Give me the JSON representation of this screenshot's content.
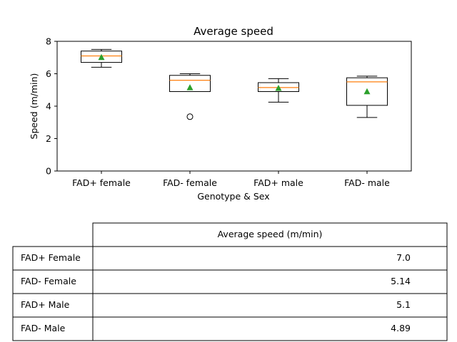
{
  "chart_data": {
    "type": "box",
    "title": "Average speed",
    "xlabel": "Genotype & Sex",
    "ylabel": "Speed (m/min)",
    "ylim": [
      0,
      8
    ],
    "yticks": [
      "0",
      "2",
      "4",
      "6",
      "8"
    ],
    "categories": [
      "FAD+ female",
      "FAD- female",
      "FAD+ male",
      "FAD- male"
    ],
    "boxes": [
      {
        "whisker_low": 6.4,
        "q1": 6.7,
        "median": 7.1,
        "q3": 7.4,
        "whisker_high": 7.5,
        "mean": 7.0,
        "outliers": []
      },
      {
        "whisker_low": 4.9,
        "q1": 4.9,
        "median": 5.6,
        "q3": 5.9,
        "whisker_high": 6.0,
        "mean": 5.14,
        "outliers": [
          3.35
        ]
      },
      {
        "whisker_low": 4.25,
        "q1": 4.9,
        "median": 5.15,
        "q3": 5.45,
        "whisker_high": 5.7,
        "mean": 5.1,
        "outliers": []
      },
      {
        "whisker_low": 3.3,
        "q1": 4.05,
        "median": 5.5,
        "q3": 5.75,
        "whisker_high": 5.85,
        "mean": 4.89,
        "outliers": []
      }
    ],
    "colors": {
      "median": "#ff7f0e",
      "mean": "#2ca02c",
      "box": "#000000"
    }
  },
  "table": {
    "column_header": "Average speed (m/min)",
    "rows": [
      {
        "label": "FAD+ Female",
        "value": "7.0"
      },
      {
        "label": "FAD- Female",
        "value": "5.14"
      },
      {
        "label": "FAD+ Male",
        "value": "5.1"
      },
      {
        "label": "FAD- Male",
        "value": "4.89"
      }
    ]
  }
}
